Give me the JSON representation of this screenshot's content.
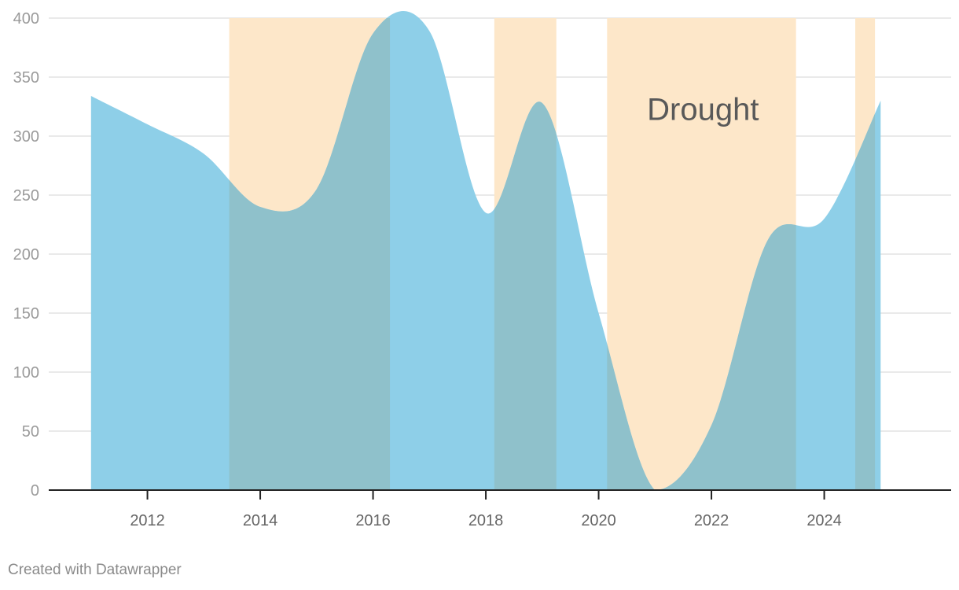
{
  "chart_data": {
    "type": "area",
    "title": "",
    "xlabel": "",
    "ylabel": "",
    "x": [
      2011.0,
      2012.0,
      2013.0,
      2014.0,
      2015.0,
      2016.0,
      2017.0,
      2018.0,
      2019.0,
      2020.0,
      2021.0,
      2022.0,
      2023.0,
      2024.0,
      2025.0
    ],
    "series": [
      {
        "values": [
          334,
          310,
          285,
          240,
          255,
          387,
          389,
          235,
          328,
          150,
          0,
          55,
          212,
          230,
          330
        ],
        "color": "#8ecfe8"
      }
    ],
    "xlim": [
      2010.25,
      2026.25
    ],
    "ylim": [
      0,
      400
    ],
    "y_ticks": [
      0,
      50,
      100,
      150,
      200,
      250,
      300,
      350,
      400
    ],
    "x_ticks": [
      2012,
      2014,
      2016,
      2018,
      2020,
      2022,
      2024
    ],
    "y_tick_labels": [
      "0",
      "50",
      "100",
      "150",
      "200",
      "250",
      "300",
      "350",
      "400"
    ],
    "x_tick_labels": [
      "2012",
      "2014",
      "2016",
      "2018",
      "2020",
      "2022",
      "2024"
    ],
    "grid": true,
    "shaded_ranges": [
      {
        "start": 2013.45,
        "end": 2016.3
      },
      {
        "start": 2018.15,
        "end": 2019.25
      },
      {
        "start": 2020.15,
        "end": 2023.5
      },
      {
        "start": 2024.55,
        "end": 2024.9
      }
    ],
    "shade_color": "#fde7c9",
    "annotation": {
      "text": "Drought",
      "x": 2021.85,
      "y": 323
    }
  },
  "footer": {
    "credit": "Created with Datawrapper"
  }
}
